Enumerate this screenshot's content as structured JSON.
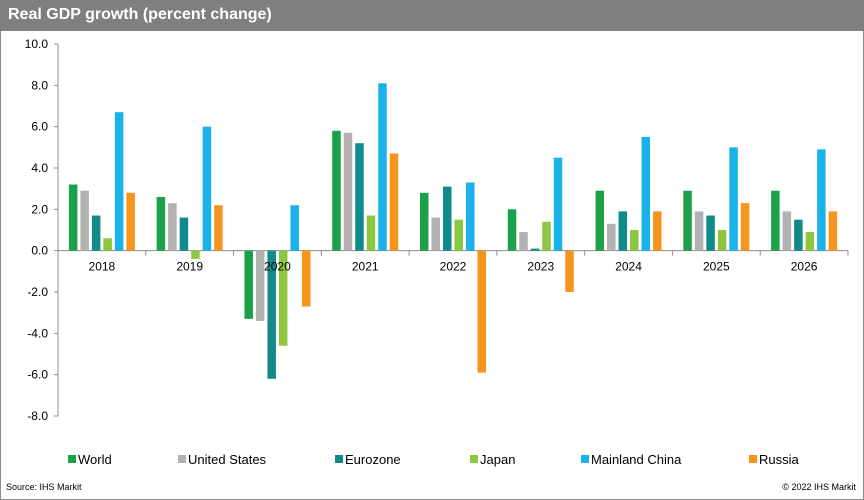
{
  "header": {
    "title": "Real GDP growth (percent change)"
  },
  "footer": {
    "source": "Source:  IHS Markit",
    "copyright": "© 2022  IHS Markit"
  },
  "chart_data": {
    "type": "bar",
    "title": "Real GDP growth (percent change)",
    "xlabel": "",
    "ylabel": "",
    "categories": [
      "2018",
      "2019",
      "2020",
      "2021",
      "2022",
      "2023",
      "2024",
      "2025",
      "2026"
    ],
    "ylim": [
      -8,
      10
    ],
    "yticks": [
      "10.0",
      "8.0",
      "6.0",
      "4.0",
      "2.0",
      "0.0",
      "-2.0",
      "-4.0",
      "-6.0",
      "-8.0"
    ],
    "grid": false,
    "legend_position": "bottom",
    "series": [
      {
        "name": "World",
        "color": "#1aa14a",
        "values": [
          3.2,
          2.6,
          -3.3,
          5.8,
          2.8,
          2.0,
          2.9,
          2.9,
          2.9
        ]
      },
      {
        "name": "United States",
        "color": "#b2b2b2",
        "values": [
          2.9,
          2.3,
          -3.4,
          5.7,
          1.6,
          0.9,
          1.3,
          1.9,
          1.9
        ]
      },
      {
        "name": "Eurozone",
        "color": "#118a8a",
        "values": [
          1.7,
          1.6,
          -6.2,
          5.2,
          3.1,
          0.1,
          1.9,
          1.7,
          1.5
        ]
      },
      {
        "name": "Japan",
        "color": "#8dc63f",
        "values": [
          0.6,
          -0.4,
          -4.6,
          1.7,
          1.5,
          1.4,
          1.0,
          1.0,
          0.9
        ]
      },
      {
        "name": "Mainland China",
        "color": "#1ab2ea",
        "values": [
          6.7,
          6.0,
          2.2,
          8.1,
          3.3,
          4.5,
          5.5,
          5.0,
          4.9
        ]
      },
      {
        "name": "Russia",
        "color": "#f7941d",
        "values": [
          2.8,
          2.2,
          -2.7,
          4.7,
          -5.9,
          -2.0,
          1.9,
          2.3,
          1.9
        ]
      }
    ]
  }
}
